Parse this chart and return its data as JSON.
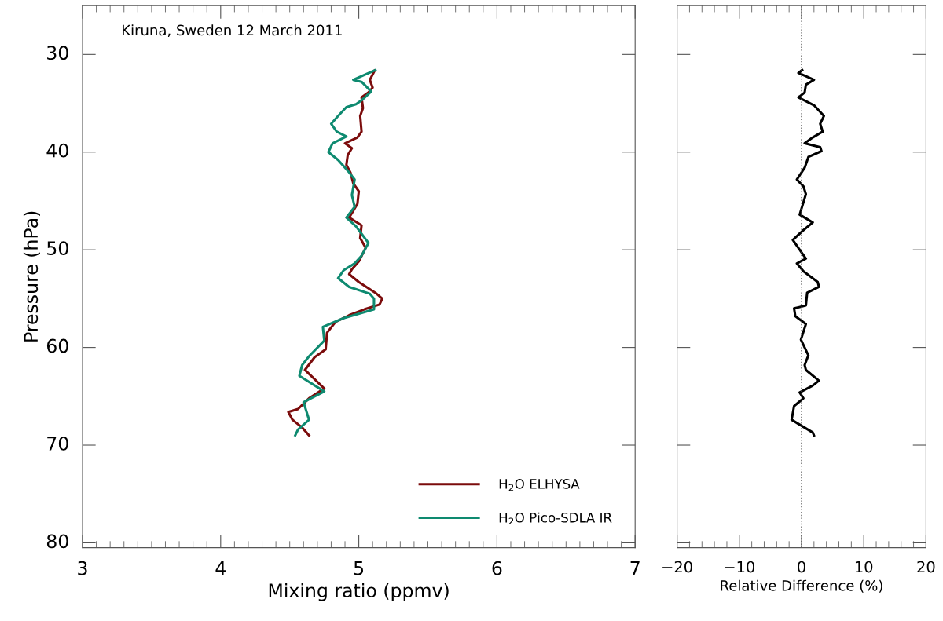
{
  "chart_data": [
    {
      "type": "line",
      "xlabel": "Mixing ratio (ppmv)",
      "ylabel": "Pressure (hPa)",
      "annotations": [
        "Kiruna, Sweden 12 March 2011"
      ],
      "xlim": [
        3,
        7
      ],
      "xticks": [
        3,
        4,
        5,
        6,
        7
      ],
      "ylim": [
        80.5,
        25
      ],
      "yticks": [
        30,
        40,
        50,
        60,
        70,
        80
      ],
      "grid": false,
      "legend": "bottom right",
      "marker": "none",
      "line_style": "solid",
      "series": [
        {
          "name": "H$_{2}$O ELHYSA",
          "color": "#7b0c0c",
          "x": [
            5.115,
            5.08,
            5.1,
            5.07,
            5.02,
            5.03,
            5.01,
            5.02,
            4.99,
            4.9,
            4.95,
            4.92,
            4.91,
            4.94,
            4.96,
            5.0,
            4.99,
            4.93,
            5.02,
            5.01,
            5.05,
            5.0,
            4.95,
            4.93,
            5.0,
            5.12,
            5.17,
            5.15,
            5.04,
            4.93,
            4.83,
            4.77,
            4.76,
            4.68,
            4.61,
            4.75,
            4.64,
            4.56,
            4.49,
            4.52,
            4.59,
            4.64
          ],
          "values": [
            31.65,
            32.6,
            33.4,
            33.9,
            34.4,
            35.5,
            36.3,
            37.9,
            38.5,
            39.1,
            39.6,
            40.3,
            41.3,
            42.1,
            43.2,
            44.0,
            45.3,
            46.7,
            47.5,
            48.8,
            49.8,
            51.2,
            52.0,
            52.5,
            53.3,
            54.4,
            55.0,
            55.6,
            56.1,
            56.7,
            57.4,
            58.5,
            60.2,
            61.0,
            62.3,
            64.2,
            65.2,
            66.3,
            66.6,
            67.4,
            68.2,
            69.0
          ]
        },
        {
          "name": "H$_{2}$O Pico-SDLA IR",
          "color": "#0e8a70",
          "x": [
            5.12,
            4.96,
            5.02,
            5.09,
            5.02,
            4.98,
            4.91,
            4.85,
            4.8,
            4.84,
            4.91,
            4.81,
            4.78,
            4.85,
            4.92,
            4.97,
            4.95,
            4.97,
            4.91,
            4.98,
            5.07,
            5.02,
            4.97,
            4.89,
            4.85,
            4.93,
            5.08,
            5.11,
            5.11,
            4.89,
            4.74,
            4.75,
            4.64,
            4.59,
            4.57,
            4.75,
            4.6,
            4.64,
            4.56,
            4.54
          ],
          "values": [
            31.6,
            32.6,
            32.8,
            33.8,
            34.7,
            35.1,
            35.4,
            36.3,
            37.1,
            37.9,
            38.4,
            39.1,
            40.0,
            40.8,
            41.9,
            42.8,
            44.4,
            45.6,
            46.7,
            47.6,
            49.3,
            50.6,
            51.4,
            52.1,
            52.9,
            53.8,
            54.5,
            55.0,
            56.1,
            57.0,
            57.9,
            59.3,
            60.9,
            61.8,
            62.9,
            64.5,
            65.6,
            67.4,
            68.4,
            69.0
          ]
        }
      ]
    },
    {
      "type": "line",
      "xlabel": "Relative Difference (%)",
      "xlim": [
        -20,
        20
      ],
      "xticks": [
        {
          "value": -20,
          "label": "−20"
        },
        {
          "value": -10,
          "label": "−10"
        },
        0,
        10,
        20
      ],
      "ylim": [
        80.5,
        25
      ],
      "yticks": [
        {
          "value": 30,
          "label": null
        },
        {
          "value": 40,
          "label": null
        },
        {
          "value": 50,
          "label": null
        },
        {
          "value": 60,
          "label": null
        },
        {
          "value": 70,
          "label": null
        },
        {
          "value": 80,
          "label": null
        }
      ],
      "tick_labels": "x",
      "grid": false,
      "marker": "none",
      "line_style": "solid",
      "ref_lines": [
        {
          "axis": "x",
          "value": 0,
          "color": "#555555",
          "line_style": "dotted"
        }
      ],
      "series": [
        {
          "color": "#000000",
          "x": [
            0.1,
            -0.5,
            2.0,
            0.7,
            0.5,
            -0.5,
            2.0,
            3.6,
            3.0,
            3.4,
            1.8,
            0.5,
            3.0,
            3.2,
            1.1,
            0.5,
            -0.75,
            0.3,
            0.7,
            -0.3,
            1.8,
            0.1,
            -1.4,
            0.7,
            -0.75,
            0.3,
            2.6,
            2.8,
            0.9,
            0.7,
            -1.2,
            -1.0,
            0.7,
            -0.1,
            1.1,
            0.5,
            0.7,
            2.8,
            1.8,
            -0.3,
            0.3,
            -1.2,
            -1.6,
            -0.3,
            1.8,
            2.0
          ],
          "values": [
            31.6,
            31.9,
            32.6,
            33.1,
            33.9,
            34.4,
            35.2,
            36.3,
            37.1,
            37.9,
            38.5,
            39.1,
            39.5,
            39.9,
            40.5,
            41.6,
            42.8,
            43.5,
            44.3,
            46.4,
            47.2,
            48.1,
            49.0,
            50.9,
            51.4,
            52.2,
            53.3,
            53.8,
            54.4,
            55.7,
            56.0,
            56.8,
            57.6,
            59.2,
            60.8,
            61.8,
            62.3,
            63.4,
            63.9,
            64.6,
            65.2,
            66.0,
            67.4,
            67.9,
            68.7,
            69.0
          ]
        }
      ]
    }
  ]
}
